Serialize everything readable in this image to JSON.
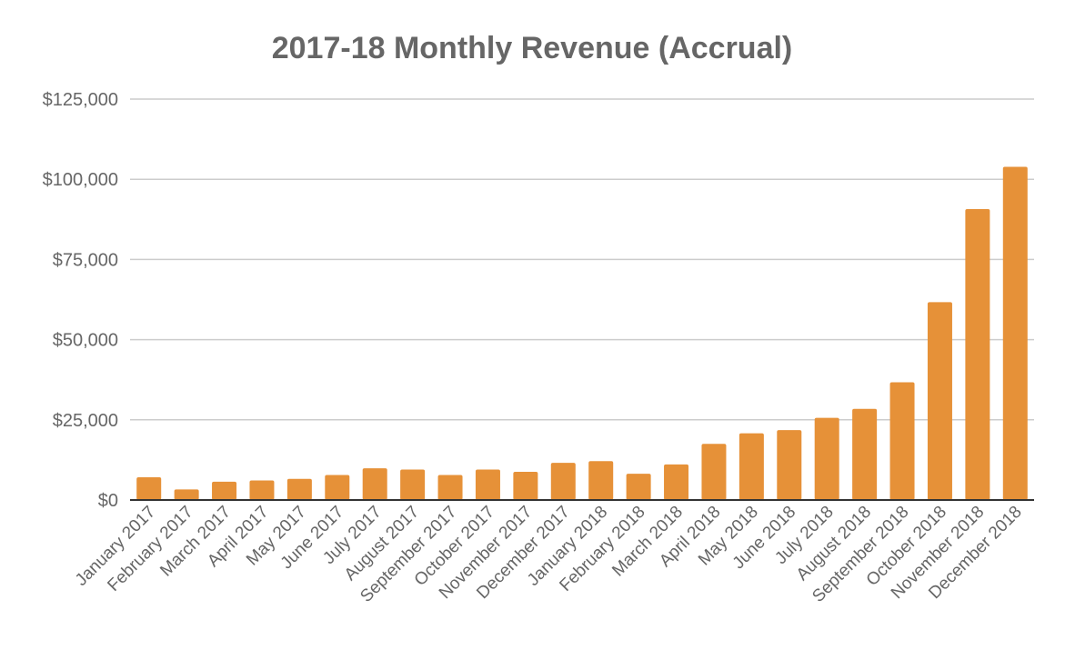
{
  "chart_data": {
    "type": "bar",
    "title": "2017-18 Monthly Revenue (Accrual)",
    "xlabel": "",
    "ylabel": "",
    "ylim": [
      0,
      125000
    ],
    "yticks": [
      0,
      25000,
      50000,
      75000,
      100000,
      125000
    ],
    "ytick_labels": [
      "$0",
      "$25,000",
      "$50,000",
      "$75,000",
      "$100,000",
      "$125,000"
    ],
    "grid": true,
    "bar_color": "#E69138",
    "categories": [
      "January 2017",
      "February 2017",
      "March 2017",
      "April 2017",
      "May 2017",
      "June 2017",
      "July 2017",
      "August 2017",
      "September 2017",
      "October 2017",
      "November 2017",
      "December 2017",
      "January 2018",
      "February 2018",
      "March 2018",
      "April 2018",
      "May 2018",
      "June 2018",
      "July 2018",
      "August 2018",
      "September 2018",
      "October 2018",
      "November 2018",
      "December 2018"
    ],
    "values": [
      7100,
      3300,
      5700,
      6100,
      6600,
      7800,
      9900,
      9500,
      7800,
      9500,
      8800,
      11600,
      12100,
      8200,
      11100,
      17500,
      20800,
      21800,
      25600,
      28400,
      36700,
      61700,
      90700,
      103900
    ]
  }
}
